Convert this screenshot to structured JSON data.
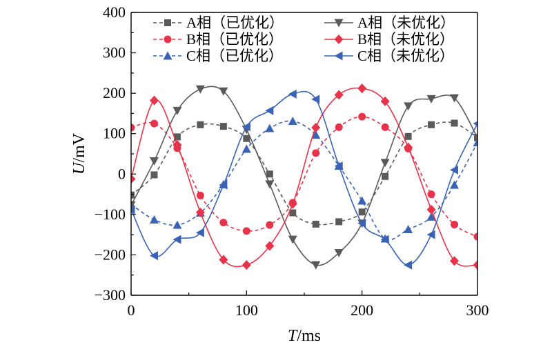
{
  "chart_data": {
    "type": "line",
    "xlabel": "T/ms",
    "ylabel": "U/mV",
    "xlim": [
      0,
      300
    ],
    "ylim": [
      -300,
      400
    ],
    "xticks": [
      0,
      100,
      200,
      300
    ],
    "yticks": [
      -300,
      -200,
      -100,
      0,
      100,
      200,
      300,
      400
    ],
    "grid": false,
    "legend_position": "top",
    "series": [
      {
        "name": "A相（已优化）",
        "color": "#5a5a5a",
        "dashed": true,
        "marker": "square",
        "x": [
          0,
          20,
          40,
          60,
          80,
          100,
          120,
          140,
          160,
          180,
          200,
          220,
          240,
          260,
          280,
          300
        ],
        "y": [
          -52,
          -2,
          92,
          122,
          118,
          88,
          0,
          -96,
          -124,
          -118,
          -94,
          -6,
          93,
          122,
          126,
          90
        ]
      },
      {
        "name": "B相（已优化）",
        "color": "#e8334a",
        "dashed": true,
        "marker": "circle",
        "x": [
          0,
          20,
          40,
          60,
          80,
          100,
          120,
          140,
          160,
          180,
          200,
          220,
          240,
          260,
          280,
          300
        ],
        "y": [
          115,
          125,
          64,
          -53,
          -120,
          -141,
          -126,
          -71,
          52,
          116,
          142,
          116,
          63,
          -50,
          -125,
          -155
        ]
      },
      {
        "name": "C相（已优化）",
        "color": "#3a63b5",
        "dashed": true,
        "marker": "triangle-up",
        "x": [
          0,
          20,
          40,
          60,
          80,
          100,
          120,
          140,
          160,
          180,
          200,
          220,
          240,
          260,
          280,
          300
        ],
        "y": [
          -75,
          -113,
          -126,
          -96,
          -26,
          62,
          113,
          131,
          97,
          20,
          -66,
          -160,
          -137,
          -106,
          -27,
          78
        ]
      },
      {
        "name": "A相（未优化）",
        "color": "#5a5a5a",
        "dashed": false,
        "marker": "triangle-down",
        "x": [
          0,
          20,
          40,
          60,
          80,
          100,
          120,
          140,
          160,
          180,
          200,
          220,
          240,
          260,
          280,
          300
        ],
        "y": [
          -77,
          32,
          157,
          210,
          205,
          110,
          -25,
          -162,
          -225,
          -195,
          -122,
          28,
          168,
          186,
          188,
          90
        ]
      },
      {
        "name": "B相（未优化）",
        "color": "#e8334a",
        "dashed": false,
        "marker": "diamond",
        "x": [
          0,
          20,
          40,
          60,
          80,
          100,
          120,
          140,
          160,
          180,
          200,
          220,
          240,
          260,
          280,
          300
        ],
        "y": [
          -12,
          182,
          72,
          -95,
          -212,
          -225,
          -178,
          -74,
          115,
          196,
          212,
          180,
          66,
          -88,
          -215,
          -225
        ]
      },
      {
        "name": "C相（未优化）",
        "color": "#3a63b5",
        "dashed": false,
        "marker": "triangle-left",
        "x": [
          0,
          20,
          40,
          60,
          80,
          100,
          120,
          140,
          160,
          180,
          200,
          220,
          240,
          260,
          280,
          300
        ],
        "y": [
          -88,
          -202,
          -162,
          -145,
          -27,
          117,
          157,
          198,
          185,
          20,
          -122,
          -162,
          -225,
          -150,
          10,
          125
        ]
      }
    ]
  }
}
